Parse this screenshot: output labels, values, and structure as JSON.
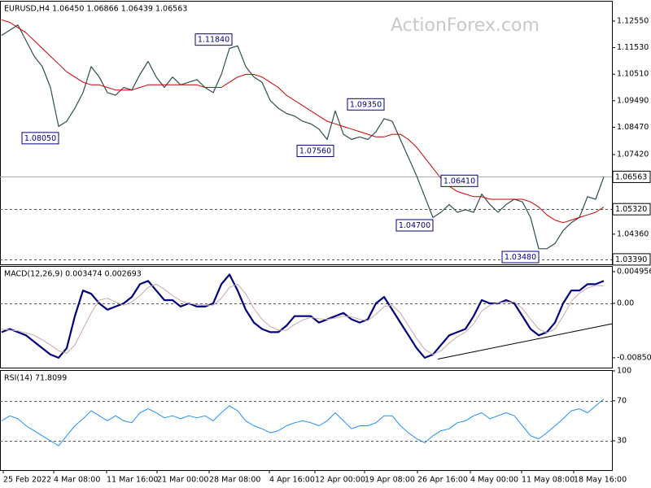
{
  "chart_data": [
    {
      "type": "line",
      "title": "EURUSD,H4 1.06450 1.06866 1.06439 1.06563",
      "watermark": "ActionForex.com",
      "xlim": [
        -0.2,
        75
      ],
      "ylim": [
        1.032,
        1.1333
      ],
      "yticks": [
        {
          "value": 1.1255,
          "label": "1.12550"
        },
        {
          "value": 1.1153,
          "label": "1.11530"
        },
        {
          "value": 1.1051,
          "label": "1.10510"
        },
        {
          "value": 1.0949,
          "label": "1.09490"
        },
        {
          "value": 1.0847,
          "label": "1.08470"
        },
        {
          "value": 1.0742,
          "label": "1.07420"
        },
        {
          "value": 1.0436,
          "label": "1.04360"
        }
      ],
      "series": [
        {
          "name": "EURUSD",
          "color": "#2f4f4f",
          "width": 1.2,
          "values": [
            1.12,
            1.122,
            1.124,
            1.118,
            1.112,
            1.108,
            1.1,
            1.085,
            1.087,
            1.092,
            1.098,
            1.108,
            1.104,
            1.098,
            1.097,
            1.1,
            1.099,
            1.105,
            1.11,
            1.104,
            1.1,
            1.104,
            1.101,
            1.102,
            1.103,
            1.1,
            1.098,
            1.105,
            1.115,
            1.116,
            1.108,
            1.104,
            1.102,
            1.095,
            1.092,
            1.09,
            1.089,
            1.087,
            1.086,
            1.084,
            1.08,
            1.091,
            1.082,
            1.08,
            1.081,
            1.08,
            1.083,
            1.088,
            1.087,
            1.08,
            1.073,
            1.066,
            1.058,
            1.05,
            1.052,
            1.055,
            1.052,
            1.053,
            1.052,
            1.059,
            1.055,
            1.052,
            1.055,
            1.057,
            1.056,
            1.05,
            1.038,
            1.038,
            1.04,
            1.045,
            1.048,
            1.05,
            1.058,
            1.057,
            1.0656
          ]
        },
        {
          "name": "MA",
          "color": "#cc0000",
          "width": 1,
          "values": [
            1.126,
            1.125,
            1.123,
            1.121,
            1.118,
            1.115,
            1.112,
            1.109,
            1.106,
            1.104,
            1.102,
            1.101,
            1.101,
            1.1,
            1.099,
            1.099,
            1.099,
            1.1,
            1.101,
            1.101,
            1.101,
            1.101,
            1.101,
            1.101,
            1.101,
            1.1,
            1.1,
            1.1,
            1.102,
            1.104,
            1.105,
            1.105,
            1.104,
            1.102,
            1.1,
            1.097,
            1.095,
            1.093,
            1.091,
            1.089,
            1.087,
            1.086,
            1.085,
            1.084,
            1.083,
            1.082,
            1.081,
            1.081,
            1.082,
            1.082,
            1.08,
            1.077,
            1.073,
            1.069,
            1.065,
            1.062,
            1.06,
            1.059,
            1.058,
            1.058,
            1.057,
            1.057,
            1.057,
            1.057,
            1.057,
            1.056,
            1.054,
            1.051,
            1.049,
            1.048,
            1.049,
            1.05,
            1.051,
            1.052,
            1.054
          ]
        }
      ],
      "annotations": [
        {
          "x": 28.6,
          "value": 1.1184,
          "label": "1.11840"
        },
        {
          "x": 7.3,
          "value": 1.0805,
          "label": "1.08050"
        },
        {
          "x": 47.3,
          "value": 1.0935,
          "label": "1.09350"
        },
        {
          "x": 41.1,
          "value": 1.0756,
          "label": "1.07560"
        },
        {
          "x": 58.8,
          "value": 1.0641,
          "label": "1.06410"
        },
        {
          "x": 53.3,
          "value": 1.047,
          "label": "1.04700"
        },
        {
          "x": 66.3,
          "value": 1.0348,
          "label": "1.03480"
        }
      ],
      "levels": [
        {
          "value": 1.06563,
          "label": "1.06563",
          "style": "solid"
        },
        {
          "value": 1.0532,
          "label": "1.05320",
          "style": "dashed"
        },
        {
          "value": 1.0339,
          "label": "1.03390",
          "style": "dashed"
        }
      ]
    },
    {
      "type": "line",
      "title": "MACD(12,26,9) 0.003474 0.002693",
      "xlim": [
        -0.2,
        75
      ],
      "ylim": [
        -0.01004,
        0.00584
      ],
      "yticks": [
        0.004956,
        {
          "value": 0,
          "label": "0.00"
        },
        -0.008501
      ],
      "levels": [
        0
      ],
      "series": [
        {
          "name": "MACD",
          "color": "#00007f",
          "width": 2.2,
          "values": [
            -0.0045,
            -0.004,
            -0.0045,
            -0.005,
            -0.006,
            -0.007,
            -0.008,
            -0.0085,
            -0.007,
            -0.002,
            0.002,
            0.0015,
            0,
            -0.001,
            -0.0005,
            0,
            0.001,
            0.003,
            0.0035,
            0.002,
            0.0005,
            0.0005,
            -0.0005,
            0,
            -0.0005,
            -0.0005,
            0,
            0.003,
            0.0045,
            0.002,
            -0.001,
            -0.003,
            -0.004,
            -0.0045,
            -0.0045,
            -0.0035,
            -0.002,
            -0.002,
            -0.002,
            -0.003,
            -0.0025,
            -0.002,
            -0.0015,
            -0.0025,
            -0.003,
            -0.0025,
            0,
            0.001,
            -0.001,
            -0.003,
            -0.005,
            -0.007,
            -0.0085,
            -0.008,
            -0.0065,
            -0.005,
            -0.0045,
            -0.004,
            -0.002,
            0.0005,
            0,
            0,
            0.0005,
            0,
            -0.002,
            -0.004,
            -0.005,
            -0.0045,
            -0.003,
            0,
            0.002,
            0.002,
            0.003,
            0.003,
            0.0035
          ]
        },
        {
          "name": "Signal",
          "color": "#c8a8a8",
          "width": 1,
          "values": [
            -0.004,
            -0.0042,
            -0.0043,
            -0.0046,
            -0.005,
            -0.0057,
            -0.0065,
            -0.0074,
            -0.0078,
            -0.0065,
            -0.004,
            -0.0015,
            0.0005,
            0.0008,
            0.0002,
            -0.0003,
            0.0002,
            0.0012,
            0.0025,
            0.003,
            0.0022,
            0.0012,
            0.0004,
            0,
            -0.0002,
            -0.0003,
            -0.0003,
            0.0008,
            0.0025,
            0.003,
            0.0015,
            -0.0008,
            -0.0025,
            -0.0036,
            -0.0042,
            -0.0042,
            -0.0033,
            -0.0026,
            -0.0022,
            -0.0024,
            -0.0025,
            -0.0023,
            -0.002,
            -0.0021,
            -0.0025,
            -0.0027,
            -0.0017,
            -0.0005,
            -0.0003,
            -0.0015,
            -0.0035,
            -0.0055,
            -0.0072,
            -0.008,
            -0.0074,
            -0.0062,
            -0.0052,
            -0.0045,
            -0.0032,
            -0.0012,
            -0.0003,
            0.0001,
            0.0002,
            0.0002,
            -0.0008,
            -0.0025,
            -0.004,
            -0.0046,
            -0.004,
            -0.002,
            0.0003,
            0.0016,
            0.0024,
            0.0028,
            0.0027
          ]
        }
      ],
      "trendline": {
        "x": [
          53.6,
          75
        ],
        "y": [
          -0.0087,
          -0.0032
        ]
      }
    },
    {
      "type": "line",
      "title": "RSI(14) 71.8099",
      "xlim": [
        -0.2,
        75
      ],
      "ylim": [
        0.6,
        100.8
      ],
      "yticks": [
        100,
        70,
        30
      ],
      "levels": [
        70,
        30
      ],
      "series": [
        {
          "name": "RSI",
          "color": "#1e90ff",
          "width": 1,
          "values": [
            50,
            55,
            52,
            45,
            40,
            35,
            30,
            25,
            35,
            45,
            52,
            60,
            55,
            50,
            55,
            50,
            48,
            58,
            62,
            58,
            53,
            55,
            52,
            55,
            53,
            55,
            50,
            58,
            65,
            60,
            50,
            45,
            42,
            38,
            40,
            45,
            48,
            50,
            48,
            45,
            50,
            58,
            50,
            42,
            45,
            45,
            48,
            55,
            55,
            45,
            38,
            32,
            28,
            35,
            40,
            42,
            48,
            50,
            55,
            58,
            52,
            55,
            58,
            55,
            45,
            35,
            32,
            38,
            45,
            52,
            60,
            62,
            58,
            65,
            71.8
          ]
        }
      ],
      "xticks": [
        {
          "value": 0.2,
          "label": "25 Feb 2022"
        },
        {
          "value": 6.4,
          "label": "4 Mar 08:00"
        },
        {
          "value": 12.9,
          "label": "11 Mar 16:00"
        },
        {
          "value": 19.1,
          "label": "21 Mar 00:00"
        },
        {
          "value": 25.5,
          "label": "28 Mar 08:00"
        },
        {
          "value": 32.9,
          "label": "4 Apr 16:00"
        },
        {
          "value": 38.5,
          "label": "12 Apr 00:00"
        },
        {
          "value": 44.6,
          "label": "19 Apr 08:00"
        },
        {
          "value": 51.1,
          "label": "26 Apr 16:00"
        },
        {
          "value": 57.6,
          "label": "4 May 00:00"
        },
        {
          "value": 63.9,
          "label": "11 May 08:00"
        },
        {
          "value": 70.3,
          "label": "18 May 16:00"
        }
      ]
    }
  ]
}
